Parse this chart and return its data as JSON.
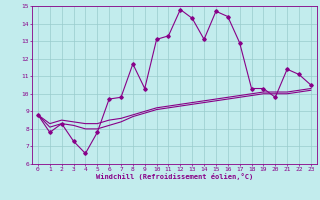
{
  "xlabel": "Windchill (Refroidissement éolien,°C)",
  "xlim": [
    -0.5,
    23.5
  ],
  "ylim": [
    6,
    15
  ],
  "xticks": [
    0,
    1,
    2,
    3,
    4,
    5,
    6,
    7,
    8,
    9,
    10,
    11,
    12,
    13,
    14,
    15,
    16,
    17,
    18,
    19,
    20,
    21,
    22,
    23
  ],
  "yticks": [
    6,
    7,
    8,
    9,
    10,
    11,
    12,
    13,
    14,
    15
  ],
  "bg_color": "#c2eced",
  "line_color": "#880088",
  "grid_color": "#99cccc",
  "series1_x": [
    0,
    1,
    2,
    3,
    4,
    5,
    6,
    7,
    8,
    9,
    10,
    11,
    12,
    13,
    14,
    15,
    16,
    17,
    18,
    19,
    20,
    21,
    22,
    23
  ],
  "series1_y": [
    8.8,
    7.8,
    8.3,
    7.3,
    6.6,
    7.8,
    9.7,
    9.8,
    11.7,
    10.3,
    13.1,
    13.3,
    14.8,
    14.3,
    13.1,
    14.7,
    14.4,
    12.9,
    10.3,
    10.3,
    9.8,
    11.4,
    11.1,
    10.5
  ],
  "series2_x": [
    0,
    1,
    2,
    3,
    4,
    5,
    6,
    7,
    8,
    9,
    10,
    11,
    12,
    13,
    14,
    15,
    16,
    17,
    18,
    19,
    20,
    21,
    22,
    23
  ],
  "series2_y": [
    8.8,
    8.3,
    8.5,
    8.4,
    8.3,
    8.3,
    8.5,
    8.6,
    8.8,
    9.0,
    9.2,
    9.3,
    9.4,
    9.5,
    9.6,
    9.7,
    9.8,
    9.9,
    10.0,
    10.1,
    10.1,
    10.1,
    10.2,
    10.3
  ],
  "series3_x": [
    0,
    1,
    2,
    3,
    4,
    5,
    6,
    7,
    8,
    9,
    10,
    11,
    12,
    13,
    14,
    15,
    16,
    17,
    18,
    19,
    20,
    21,
    22,
    23
  ],
  "series3_y": [
    8.8,
    8.1,
    8.3,
    8.2,
    8.0,
    8.0,
    8.2,
    8.4,
    8.7,
    8.9,
    9.1,
    9.2,
    9.3,
    9.4,
    9.5,
    9.6,
    9.7,
    9.8,
    9.9,
    10.0,
    10.0,
    10.0,
    10.1,
    10.2
  ]
}
